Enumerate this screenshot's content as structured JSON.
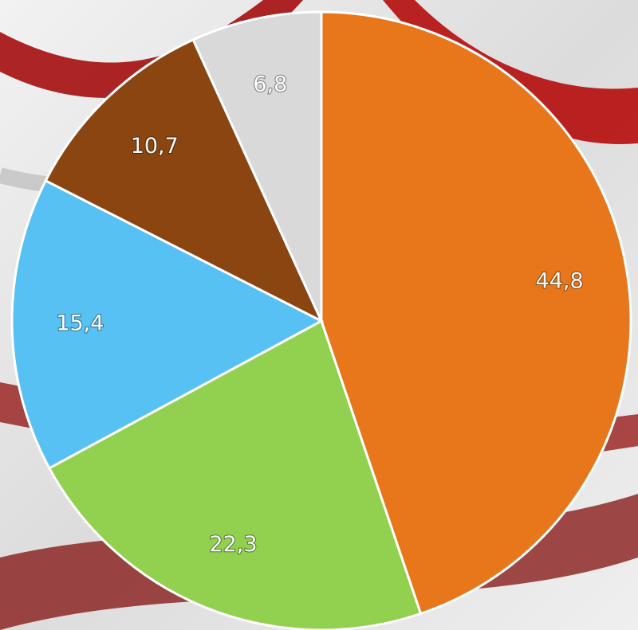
{
  "chart_data": {
    "type": "pie",
    "values": [
      44.8,
      22.3,
      15.4,
      10.7,
      6.8
    ],
    "value_labels": [
      "44,8",
      "22,3",
      "15,4",
      "10,7",
      "6,8"
    ],
    "colors": [
      "#e8761a",
      "#92d050",
      "#56c1f2",
      "#8b4510",
      "#d9d9d9"
    ]
  }
}
